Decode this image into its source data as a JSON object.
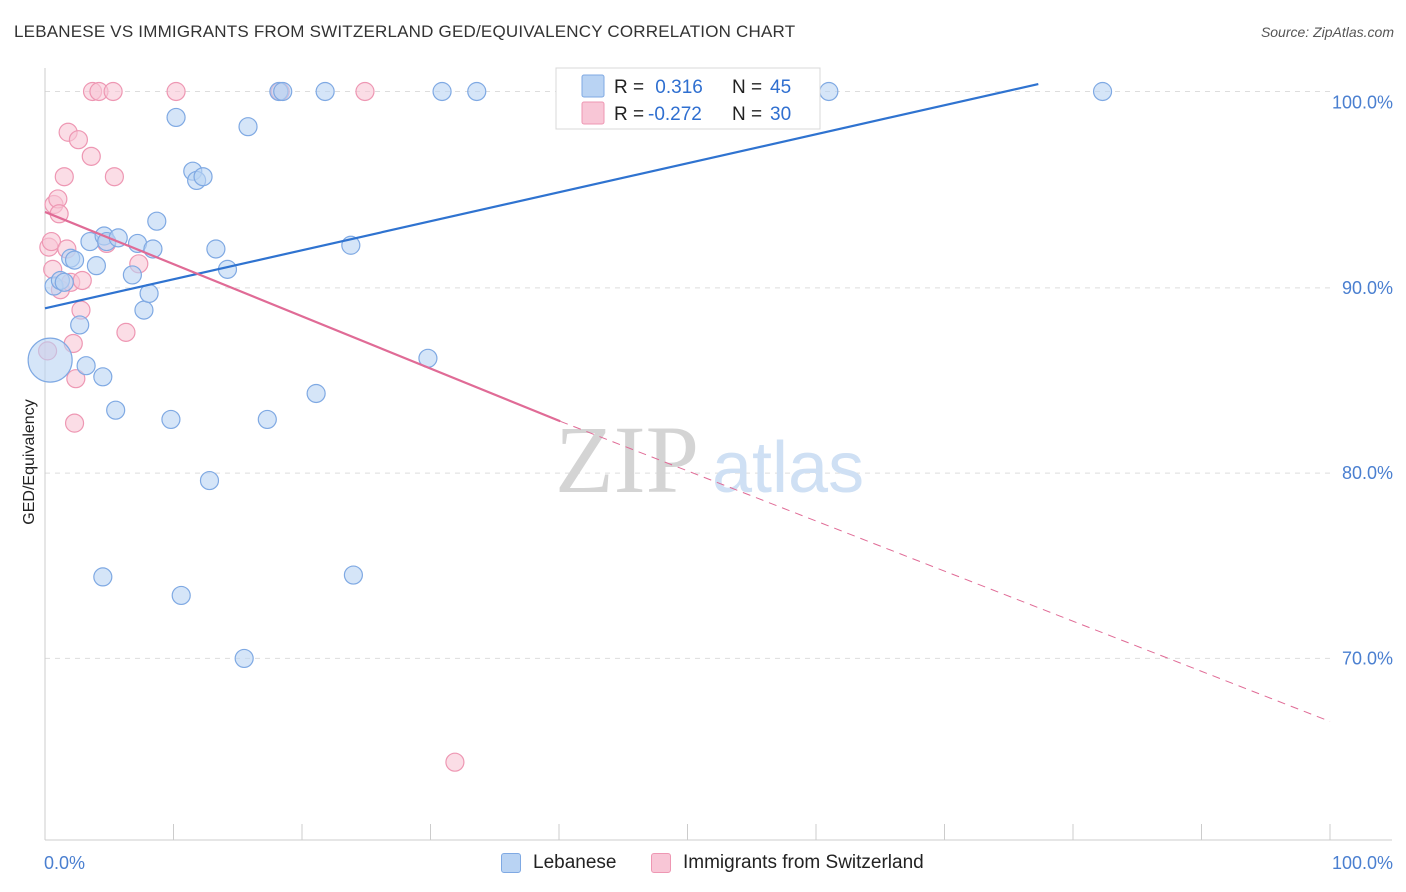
{
  "title": "LEBANESE VS IMMIGRANTS FROM SWITZERLAND GED/EQUIVALENCY CORRELATION CHART",
  "source": "Source: ZipAtlas.com",
  "watermark": {
    "zip": "ZIP",
    "atlas": "atlas"
  },
  "colors": {
    "blue_fill": "#b9d3f3",
    "blue_stroke": "#7fa9e3",
    "blue_line": "#2f73d0",
    "pink_fill": "#f8c6d6",
    "pink_stroke": "#ee97b3",
    "pink_line": "#e06b96",
    "tick_text": "#4a7fd0",
    "grid": "#dddddd"
  },
  "stats_legend": [
    {
      "series": "Lebanese",
      "r_label": "R =",
      "r_value": " 0.316",
      "n_label": "N =",
      "n_value": "45"
    },
    {
      "series": "Immigrants from Switzerland",
      "r_label": "R =",
      "r_value": "-0.272",
      "n_label": "N =",
      "n_value": "30"
    }
  ],
  "bottom_legend": [
    "Lebanese",
    "Immigrants from Switzerland"
  ],
  "chart_data": {
    "type": "scatter",
    "title": "LEBANESE VS IMMIGRANTS FROM SWITZERLAND GED/EQUIVALENCY CORRELATION CHART",
    "xlabel": "",
    "ylabel": "GED/Equivalency",
    "x_tick_labels": [
      "0.0%",
      "100.0%"
    ],
    "y_tick_labels": [
      "100.0%",
      "90.0%",
      "80.0%",
      "70.0%"
    ],
    "y_tick_values": [
      100,
      90,
      80,
      70
    ],
    "xlim": [
      0,
      100
    ],
    "ylim": [
      60.2,
      102.3
    ],
    "legend_position": "top-center",
    "grid": true,
    "series": [
      {
        "name": "Lebanese",
        "r": 0.316,
        "n": 45,
        "trend": {
          "x0": 0,
          "y0": 88.9,
          "x1": 77.3,
          "y1": 101.0,
          "dashed_to": null
        },
        "points": [
          {
            "x": 0.4,
            "y": 86.1,
            "big": true
          },
          {
            "x": 0.7,
            "y": 90.1
          },
          {
            "x": 1.2,
            "y": 90.4
          },
          {
            "x": 1.5,
            "y": 90.3
          },
          {
            "x": 2.0,
            "y": 91.6
          },
          {
            "x": 2.3,
            "y": 91.5
          },
          {
            "x": 2.7,
            "y": 88.0
          },
          {
            "x": 3.2,
            "y": 85.8
          },
          {
            "x": 3.5,
            "y": 92.5
          },
          {
            "x": 4.0,
            "y": 91.2
          },
          {
            "x": 4.5,
            "y": 85.2
          },
          {
            "x": 4.5,
            "y": 74.4
          },
          {
            "x": 4.6,
            "y": 92.8
          },
          {
            "x": 4.8,
            "y": 92.5
          },
          {
            "x": 5.5,
            "y": 83.4
          },
          {
            "x": 5.7,
            "y": 92.7
          },
          {
            "x": 6.8,
            "y": 90.7
          },
          {
            "x": 7.2,
            "y": 92.4
          },
          {
            "x": 7.7,
            "y": 88.8
          },
          {
            "x": 8.1,
            "y": 89.7
          },
          {
            "x": 8.4,
            "y": 92.1
          },
          {
            "x": 8.7,
            "y": 93.6
          },
          {
            "x": 9.8,
            "y": 82.9
          },
          {
            "x": 10.2,
            "y": 99.2
          },
          {
            "x": 10.6,
            "y": 73.4
          },
          {
            "x": 11.5,
            "y": 96.3
          },
          {
            "x": 11.8,
            "y": 95.8
          },
          {
            "x": 12.3,
            "y": 96.0
          },
          {
            "x": 12.8,
            "y": 79.6
          },
          {
            "x": 13.3,
            "y": 92.1
          },
          {
            "x": 14.2,
            "y": 91.0
          },
          {
            "x": 15.5,
            "y": 70.0
          },
          {
            "x": 15.8,
            "y": 98.7
          },
          {
            "x": 17.3,
            "y": 82.9
          },
          {
            "x": 18.2,
            "y": 100.6
          },
          {
            "x": 18.5,
            "y": 100.6
          },
          {
            "x": 21.1,
            "y": 84.3
          },
          {
            "x": 21.8,
            "y": 100.6
          },
          {
            "x": 23.8,
            "y": 92.3
          },
          {
            "x": 24.0,
            "y": 74.5
          },
          {
            "x": 29.8,
            "y": 86.2
          },
          {
            "x": 30.9,
            "y": 100.6
          },
          {
            "x": 33.6,
            "y": 100.6
          },
          {
            "x": 61.0,
            "y": 100.6
          },
          {
            "x": 82.3,
            "y": 100.6
          }
        ]
      },
      {
        "name": "Immigrants from Switzerland",
        "r": -0.272,
        "n": 30,
        "trend": {
          "x0": 0,
          "y0": 94.1,
          "x1": 40.1,
          "y1": 82.8,
          "dashed_to": {
            "x": 100,
            "y": 66.6
          }
        },
        "points": [
          {
            "x": 0.2,
            "y": 86.6
          },
          {
            "x": 0.3,
            "y": 92.2
          },
          {
            "x": 0.5,
            "y": 92.5
          },
          {
            "x": 0.6,
            "y": 91.0
          },
          {
            "x": 0.7,
            "y": 94.5
          },
          {
            "x": 1.0,
            "y": 94.8
          },
          {
            "x": 1.1,
            "y": 94.0
          },
          {
            "x": 1.2,
            "y": 89.9
          },
          {
            "x": 1.5,
            "y": 96.0
          },
          {
            "x": 1.7,
            "y": 92.1
          },
          {
            "x": 1.8,
            "y": 98.4
          },
          {
            "x": 2.0,
            "y": 90.3
          },
          {
            "x": 2.2,
            "y": 87.0
          },
          {
            "x": 2.3,
            "y": 82.7
          },
          {
            "x": 2.4,
            "y": 85.1
          },
          {
            "x": 2.6,
            "y": 98.0
          },
          {
            "x": 2.8,
            "y": 88.8
          },
          {
            "x": 2.9,
            "y": 90.4
          },
          {
            "x": 3.6,
            "y": 97.1
          },
          {
            "x": 3.7,
            "y": 100.6
          },
          {
            "x": 4.2,
            "y": 100.6
          },
          {
            "x": 4.8,
            "y": 92.4
          },
          {
            "x": 5.3,
            "y": 100.6
          },
          {
            "x": 5.4,
            "y": 96.0
          },
          {
            "x": 6.3,
            "y": 87.6
          },
          {
            "x": 7.3,
            "y": 91.3
          },
          {
            "x": 10.2,
            "y": 100.6
          },
          {
            "x": 18.3,
            "y": 100.6
          },
          {
            "x": 24.9,
            "y": 100.6
          },
          {
            "x": 31.9,
            "y": 64.4
          }
        ]
      }
    ]
  }
}
